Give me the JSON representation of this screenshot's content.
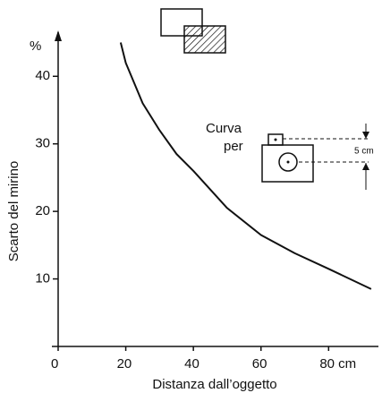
{
  "chart_data": {
    "type": "line",
    "xlabel": "Distanza dall’oggetto",
    "ylabel": "Scarto del mirino",
    "yunit": "%",
    "annotations": [
      "Curva",
      "per",
      "5 cm"
    ],
    "x": [
      18.5,
      20,
      25,
      30,
      35,
      40,
      50,
      60,
      70,
      80,
      92.6
    ],
    "series": [
      {
        "color": "#111111",
        "values": [
          45,
          42,
          36,
          32,
          28.5,
          26,
          20.5,
          16.5,
          13.8,
          11.5,
          8.5
        ]
      }
    ],
    "xlim": [
      0,
      95
    ],
    "ylim": [
      0,
      46
    ],
    "xticks": [
      0,
      20,
      40,
      60,
      {
        "value": 80,
        "label": "80 cm"
      }
    ],
    "yticks": [
      10,
      20,
      30,
      40
    ]
  }
}
